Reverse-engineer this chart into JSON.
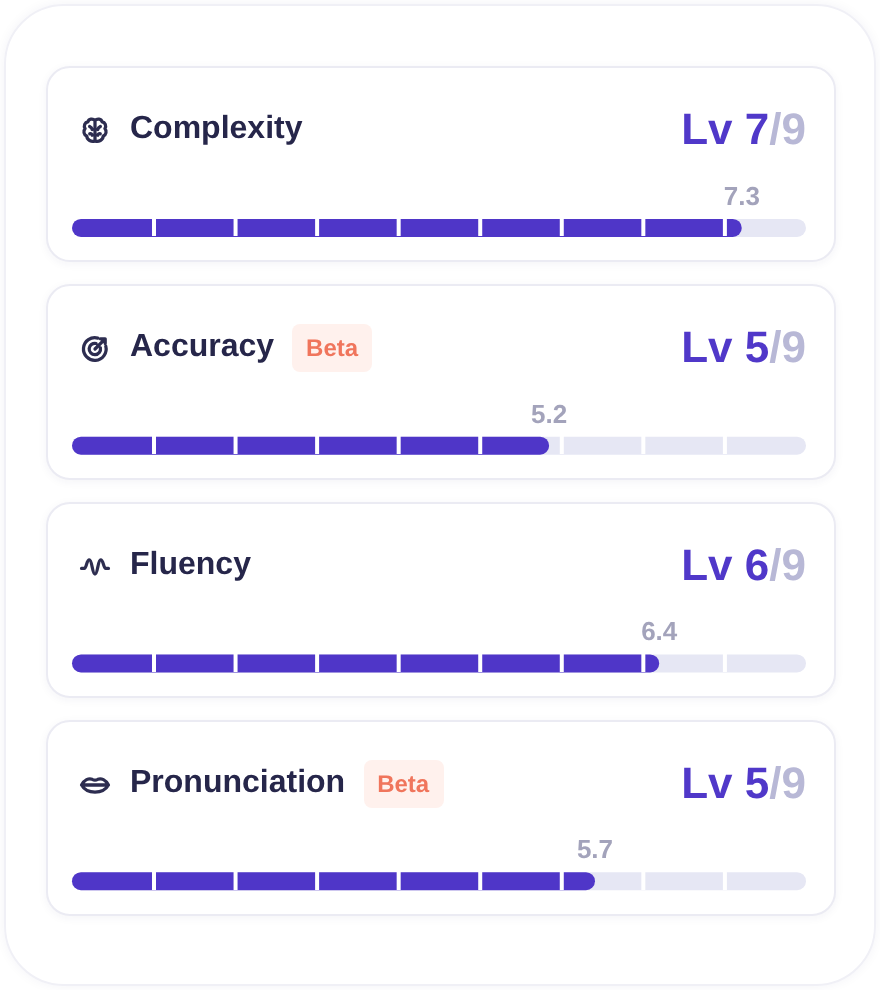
{
  "chart_data": {
    "type": "bar",
    "orientation": "horizontal",
    "categories": [
      "Complexity",
      "Accuracy",
      "Fluency",
      "Pronunciation"
    ],
    "values": [
      7.3,
      5.2,
      6.4,
      5.7
    ],
    "color": "#4f36c8",
    "tick_labels": "y",
    "data_labels": true,
    "annotations": [
      "Lv 7/9",
      "Beta",
      "Lv 5/9",
      "Lv 6/9",
      "Beta",
      "Lv 5/9"
    ]
  }
}
